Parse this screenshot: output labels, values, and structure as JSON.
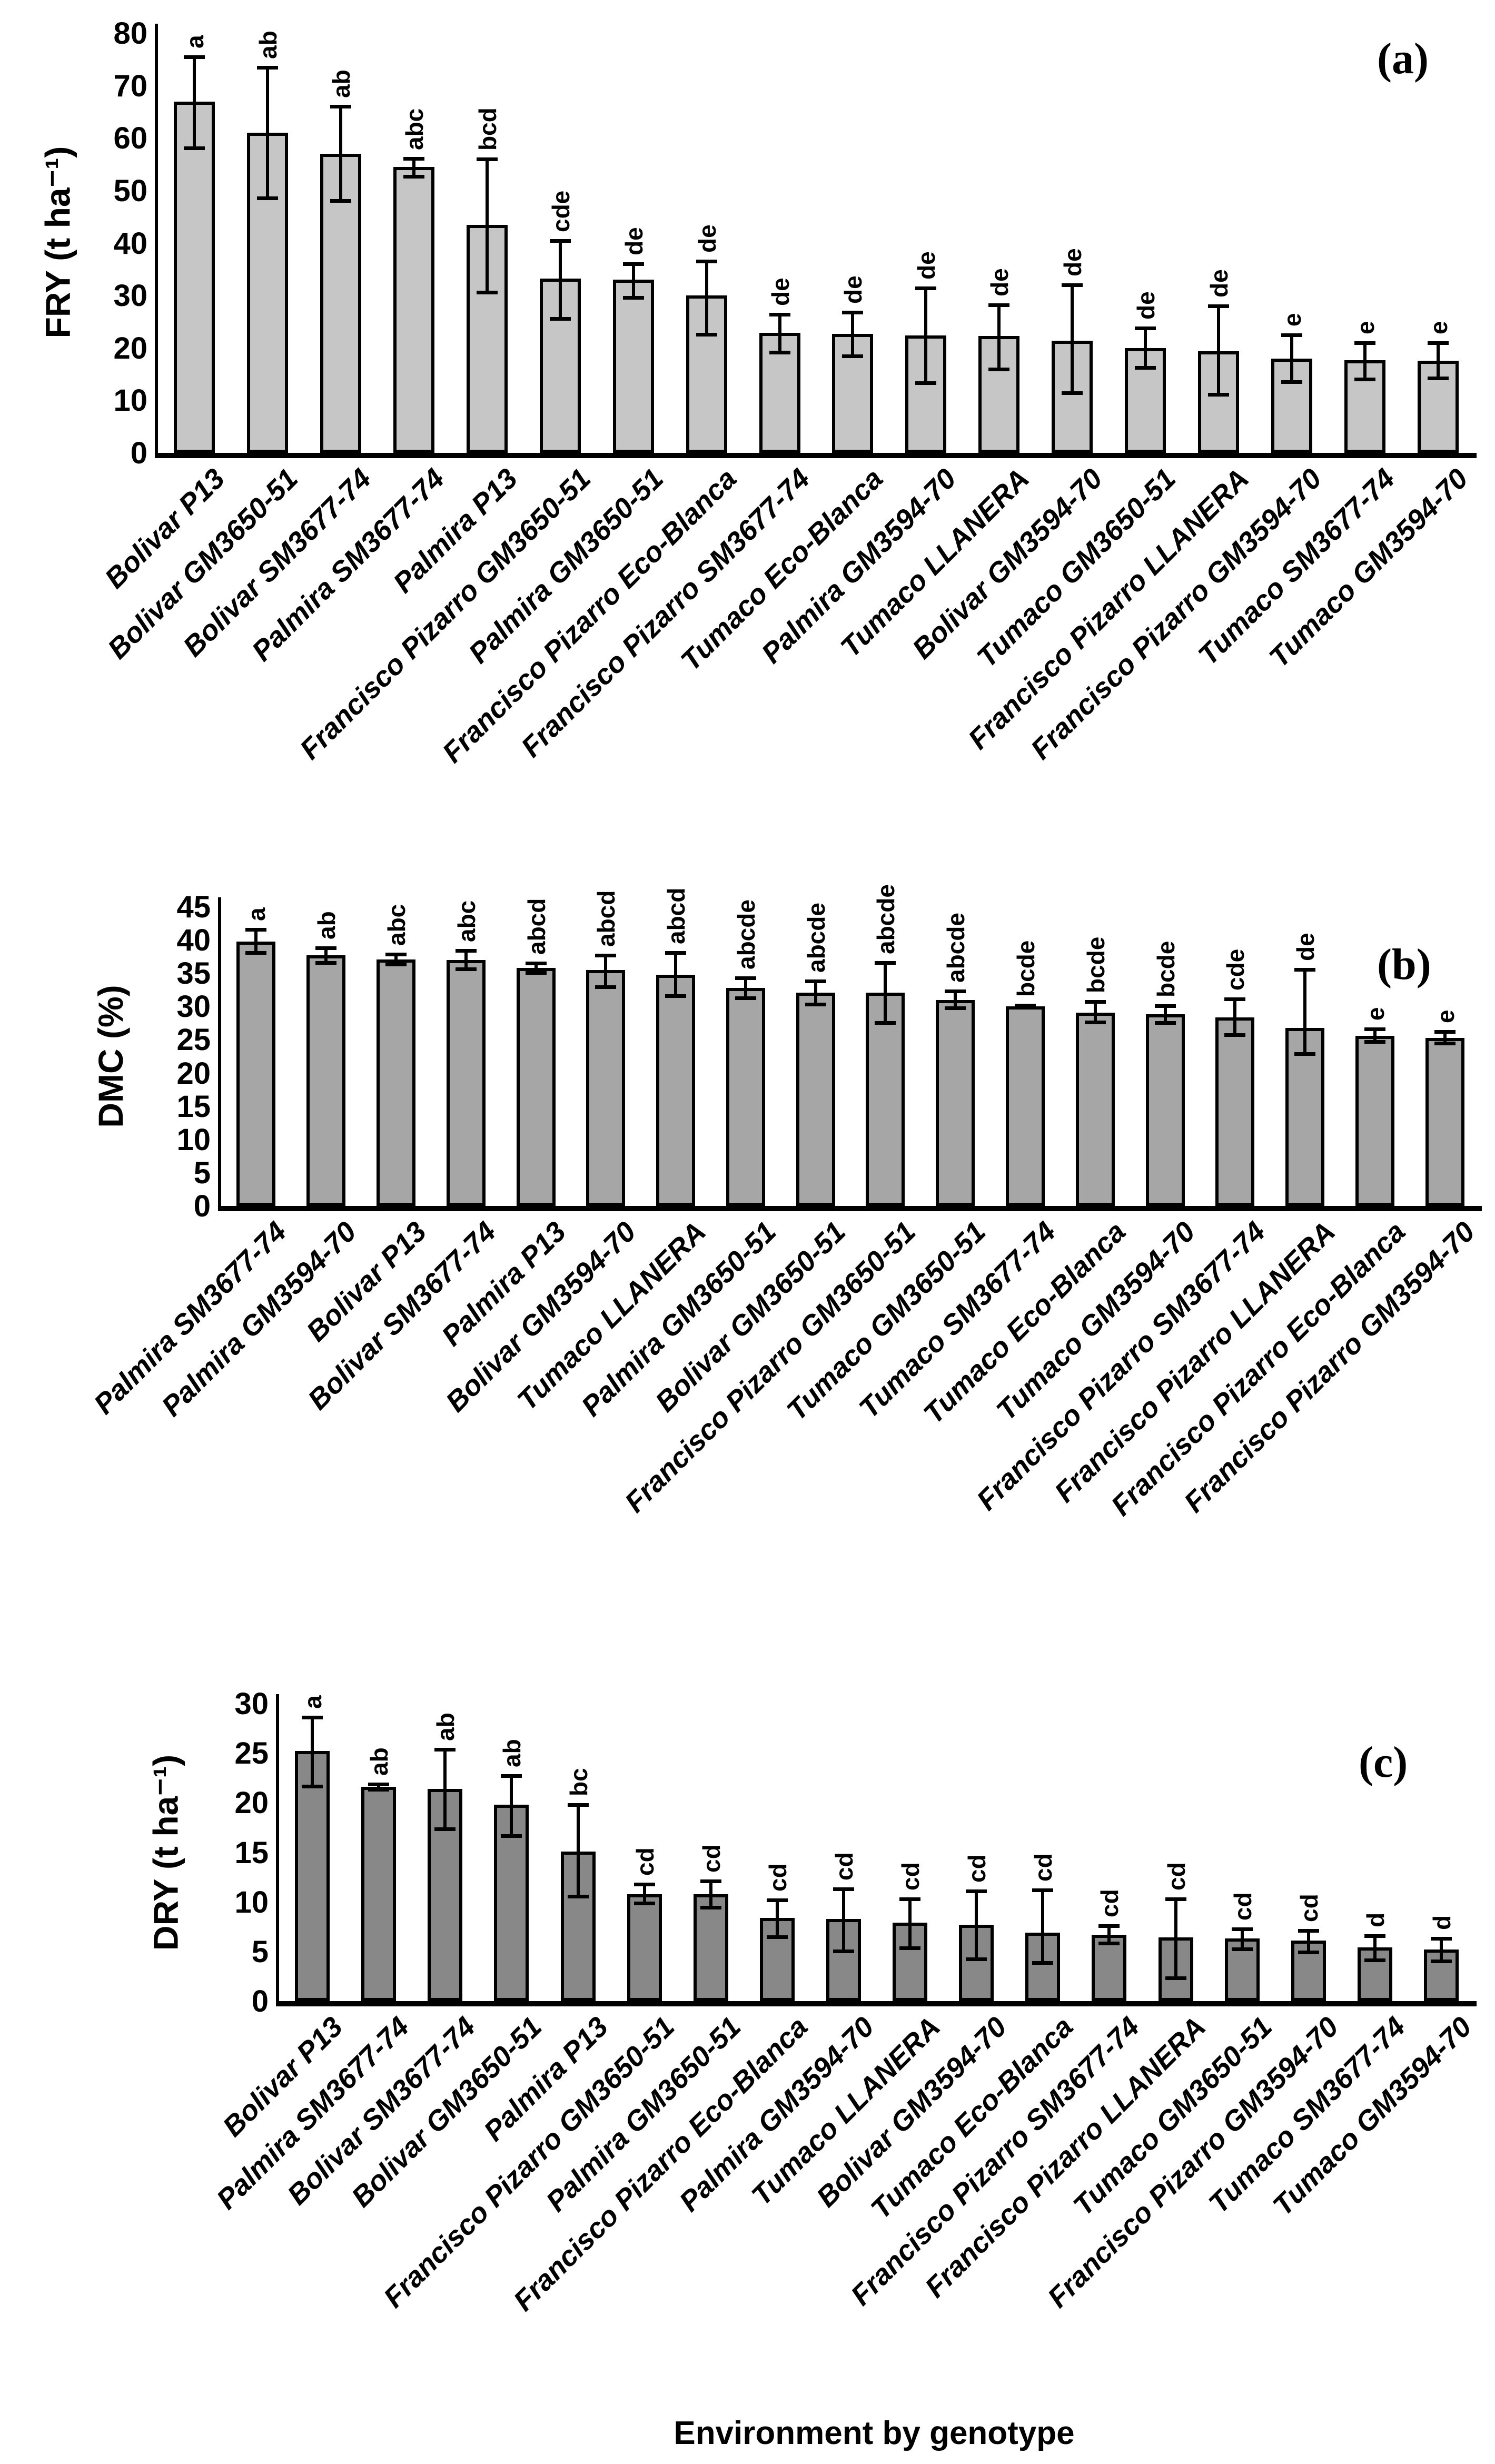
{
  "figure": {
    "bottom_axis_title": "Environment by genotype"
  },
  "chart_data": [
    {
      "type": "bar",
      "panel": "(a)",
      "ylabel": "FRY (t ha⁻¹)",
      "xlabel": "",
      "ylim": [
        0,
        80
      ],
      "ytick_step": 10,
      "grid": false,
      "legend": "none",
      "bar_color": "#c6c6c6",
      "categories": [
        "Bolivar P13",
        "Bolivar GM3650-51",
        "Bolivar SM3677-74",
        "Palmira SM3677-74",
        "Palmira P13",
        "Francisco Pizarro GM3650-51",
        "Palmira GM3650-51",
        "Francisco Pizarro Eco-Blanca",
        "Francisco Pizarro SM3677-74",
        "Tumaco Eco-Blanca",
        "Palmira GM3594-70",
        "Tumaco LLANERA",
        "Bolivar GM3594-70",
        "Tumaco GM3650-51",
        "Francisco Pizarro LLANERA",
        "Francisco Pizarro GM3594-70",
        "Tumaco SM3677-74",
        "Tumaco GM3594-70"
      ],
      "values": [
        67,
        61,
        57,
        54.5,
        43.5,
        33.2,
        33,
        30,
        22.9,
        22.7,
        22.4,
        22.3,
        21.4,
        20,
        19.4,
        18,
        17.7,
        17.6
      ],
      "err_up": [
        8.5,
        12.5,
        9,
        1.6,
        12.5,
        7.3,
        3,
        6.5,
        3.5,
        4.1,
        9,
        5.9,
        10.6,
        3.8,
        8.6,
        4.5,
        3.3,
        3.4
      ],
      "err_down": [
        9,
        12.5,
        9,
        1.9,
        13,
        7.7,
        3.5,
        7.5,
        3.8,
        4.3,
        9.2,
        6.4,
        10.1,
        3.8,
        8.4,
        4.5,
        3.7,
        3.4
      ],
      "letters": [
        "a",
        "ab",
        "ab",
        "abc",
        "bcd",
        "cde",
        "de",
        "de",
        "de",
        "de",
        "de",
        "de",
        "de",
        "de",
        "de",
        "e",
        "e",
        "e"
      ]
    },
    {
      "type": "bar",
      "panel": "(b)",
      "ylabel": "DMC (%)",
      "xlabel": "",
      "ylim": [
        0,
        45
      ],
      "ytick_step": 5,
      "grid": false,
      "legend": "none",
      "bar_color": "#a6a6a6",
      "categories": [
        "Palmira SM3677-74",
        "Palmira GM3594-70",
        "Bolivar P13",
        "Bolivar SM3677-74",
        "Palmira P13",
        "Bolivar GM3594-70",
        "Tumaco LLANERA",
        "Palmira GM3650-51",
        "Bolivar GM3650-51",
        "Francisco Pizarro GM3650-51",
        "Tumaco GM3650-51",
        "Tumaco SM3677-74",
        "Tumaco Eco-Blanca",
        "Tumaco GM3594-70",
        "Francisco Pizarro SM3677-74",
        "Francisco Pizarro LLANERA",
        "Francisco Pizarro Eco-Blanca",
        "Francisco Pizarro GM3594-70"
      ],
      "values": [
        39.8,
        37.7,
        37.1,
        37,
        35.8,
        35.5,
        34.8,
        32.8,
        32.1,
        32.1,
        31,
        30,
        29.1,
        28.8,
        28.4,
        26.8,
        25.6,
        25.3
      ],
      "err_up": [
        1.8,
        1.1,
        0.8,
        1.4,
        0.7,
        2.2,
        3.3,
        1.5,
        1.7,
        4.5,
        1.3,
        0.2,
        1.6,
        1.3,
        2.7,
        8.8,
        1,
        0.9
      ],
      "err_down": [
        1.8,
        1.2,
        0.8,
        1.4,
        0.8,
        2.6,
        3.3,
        1.6,
        1.8,
        4.6,
        1.3,
        0.2,
        1.5,
        1.3,
        2.7,
        4,
        1,
        0.9
      ],
      "letters": [
        "a",
        "ab",
        "abc",
        "abc",
        "abcd",
        "abcd",
        "abcd",
        "abcde",
        "abcde",
        "abcde",
        "abcde",
        "bcde",
        "bcde",
        "bcde",
        "cde",
        "de",
        "e",
        "e"
      ]
    },
    {
      "type": "bar",
      "panel": "(c)",
      "ylabel": "DRY (t ha⁻¹)",
      "xlabel": "Environment by genotype",
      "ylim": [
        0,
        30
      ],
      "ytick_step": 5,
      "grid": false,
      "legend": "none",
      "bar_color": "#888888",
      "categories": [
        "Bolivar P13",
        "Palmira SM3677-74",
        "Bolivar SM3677-74",
        "Bolivar GM3650-51",
        "Palmira P13",
        "Francisco Pizarro GM3650-51",
        "Palmira GM3650-51",
        "Francisco Pizarro Eco-Blanca",
        "Palmira GM3594-70",
        "Tumaco LLANERA",
        "Bolivar GM3594-70",
        "Tumaco Eco-Blanca",
        "Francisco Pizarro SM3677-74",
        "Francisco Pizarro LLANERA",
        "Tumaco GM3650-51",
        "Francisco Pizarro GM3594-70",
        "Tumaco SM3677-74",
        "Tumaco GM3594-70"
      ],
      "values": [
        25.2,
        21.6,
        21.4,
        19.8,
        15.1,
        10.8,
        10.8,
        8.4,
        8.3,
        7.9,
        7.7,
        6.9,
        6.7,
        6.4,
        6.3,
        6.1,
        5.4,
        5.2
      ],
      "err_up": [
        3.4,
        0.3,
        4,
        2.9,
        4.7,
        1,
        1.3,
        1.8,
        3,
        2.4,
        3.4,
        4.3,
        0.9,
        3.9,
        1,
        1,
        1.2,
        1.1
      ],
      "err_down": [
        3.6,
        0.3,
        4.1,
        3.2,
        4.6,
        1,
        1.4,
        2,
        3.3,
        2.6,
        3.5,
        3.1,
        0.9,
        4.1,
        1.1,
        1.2,
        1.3,
        1.2
      ],
      "letters": [
        "a",
        "ab",
        "ab",
        "ab",
        "bc",
        "cd",
        "cd",
        "cd",
        "cd",
        "cd",
        "cd",
        "cd",
        "cd",
        "cd",
        "cd",
        "cd",
        "d",
        "d"
      ]
    }
  ]
}
